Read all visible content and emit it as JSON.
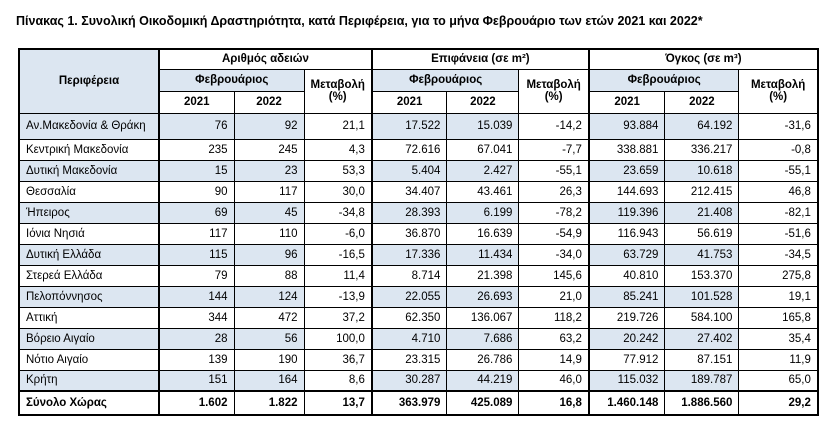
{
  "title": "Πίνακας 1. Συνολική Οικοδομική Δραστηριότητα, κατά  Περιφέρεια, για το μήνα Φεβρουάριο των ετών 2021 και 2022*",
  "table": {
    "header": {
      "region": "Περιφέρεια",
      "groups": [
        "Αριθμός αδειών",
        "Επιφάνεια (σε m²)",
        "Όγκος (σε m³)"
      ],
      "months": [
        "Φεβρουάριος",
        "Φεβρουάριος",
        "Φεβρουάριος"
      ],
      "changes": [
        "Μεταβολή (%)",
        "Μεταβολή (%)",
        "Μεταβολή (%)"
      ],
      "years": [
        "2021",
        "2022",
        "2021",
        "2022",
        "2021",
        "2022"
      ]
    },
    "rows": [
      [
        "Αν.Μακεδονία & Θράκη",
        "76",
        "92",
        "21,1",
        "17.522",
        "15.039",
        "-14,2",
        "93.884",
        "64.192",
        "-31,6"
      ],
      [
        "Κεντρική Μακεδονία",
        "235",
        "245",
        "4,3",
        "72.616",
        "67.041",
        "-7,7",
        "338.881",
        "336.217",
        "-0,8"
      ],
      [
        "Δυτική Μακεδονία",
        "15",
        "23",
        "53,3",
        "5.404",
        "2.427",
        "-55,1",
        "23.659",
        "10.618",
        "-55,1"
      ],
      [
        "Θεσσαλία",
        "90",
        "117",
        "30,0",
        "34.407",
        "43.461",
        "26,3",
        "144.693",
        "212.415",
        "46,8"
      ],
      [
        "Ήπειρος",
        "69",
        "45",
        "-34,8",
        "28.393",
        "6.199",
        "-78,2",
        "119.396",
        "21.408",
        "-82,1"
      ],
      [
        "Ιόνια Νησιά",
        "117",
        "110",
        "-6,0",
        "36.870",
        "16.639",
        "-54,9",
        "116.943",
        "56.619",
        "-51,6"
      ],
      [
        "Δυτική Ελλάδα",
        "115",
        "96",
        "-16,5",
        "17.336",
        "11.434",
        "-34,0",
        "63.729",
        "41.753",
        "-34,5"
      ],
      [
        "Στερεά Ελλάδα",
        "79",
        "88",
        "11,4",
        "8.714",
        "21.398",
        "145,6",
        "40.810",
        "153.370",
        "275,8"
      ],
      [
        "Πελοπόννησος",
        "144",
        "124",
        "-13,9",
        "22.055",
        "26.693",
        "21,0",
        "85.241",
        "101.528",
        "19,1"
      ],
      [
        "Αττική",
        "344",
        "472",
        "37,2",
        "62.350",
        "136.067",
        "118,2",
        "219.726",
        "584.100",
        "165,8"
      ],
      [
        "Βόρειο Αιγαίο",
        "28",
        "56",
        "100,0",
        "4.710",
        "7.686",
        "63,2",
        "20.242",
        "27.402",
        "35,4"
      ],
      [
        "Νότιο Αιγαίο",
        "139",
        "190",
        "36,7",
        "23.315",
        "26.786",
        "14,9",
        "77.912",
        "87.151",
        "11,9"
      ],
      [
        "Κρήτη",
        "151",
        "164",
        "8,6",
        "30.287",
        "44.219",
        "46,0",
        "115.032",
        "189.787",
        "65,0"
      ]
    ],
    "total": [
      "Σύνολο Χώρας",
      "1.602",
      "1.822",
      "13,7",
      "363.979",
      "425.089",
      "16,8",
      "1.460.148",
      "1.886.560",
      "29,2"
    ]
  }
}
